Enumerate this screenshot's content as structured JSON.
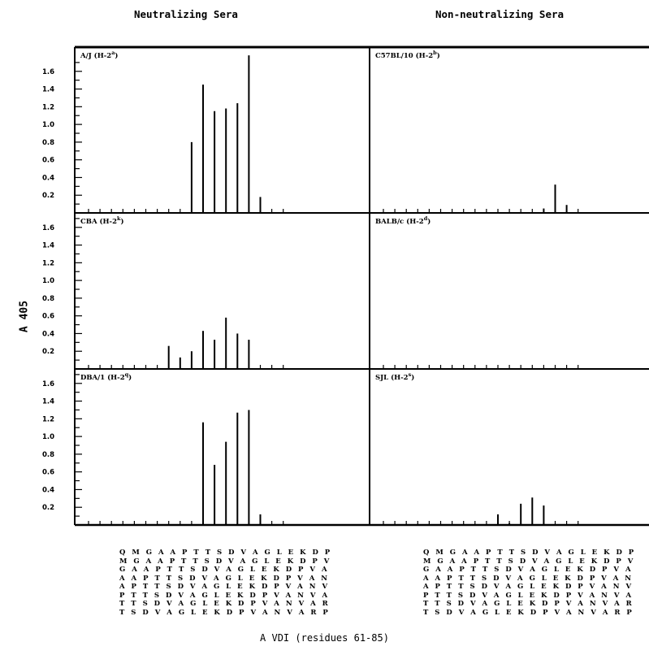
{
  "titles": {
    "left": "Neutralizing Sera",
    "right": "Non-neutralizing Sera"
  },
  "ylabel": "A 405",
  "xlabel": "A VDI (residues 61-85)",
  "sequences": [
    "Q M G A A P T T S D V A G L E K D P",
    "M G A A P T T S D V A G L E K D P V",
    "G A A P T T S D V A G L E K D P V A",
    "A A P T T S D V A G L E K D P V A N",
    "A P T T S D V A G L E K D P V A N V",
    "P T T S D V A G L E K D P V A N V A",
    "T T S D V A G L E K D P V A N V A R",
    "T S D V A G L E K D P V A N V A R P"
  ],
  "chart_data": {
    "type": "bar",
    "ylim": [
      0,
      1.8
    ],
    "yticks": [
      "0.2",
      "0.4",
      "0.6",
      "0.8",
      "1.0",
      "1.2",
      "1.4",
      "1.6"
    ],
    "num_peptides": 18,
    "panels": [
      {
        "label": "A/J (H-2a)",
        "label_main": "A/J (H-2",
        "label_sup": "a",
        "label_end": ")",
        "values": [
          0,
          0,
          0,
          0,
          0,
          0,
          0,
          0,
          0,
          0.8,
          1.45,
          1.15,
          1.18,
          1.24,
          1.78,
          0.18,
          0,
          0
        ]
      },
      {
        "label": "C57BL/10 (H-2b)",
        "label_main": "C57BL/10 (H-2",
        "label_sup": "b",
        "label_end": ")",
        "values": [
          0,
          0,
          0,
          0,
          0,
          0,
          0,
          0,
          0,
          0,
          0,
          0,
          0,
          0,
          0.05,
          0.32,
          0.09,
          0
        ]
      },
      {
        "label": "CBA (H-2k)",
        "label_main": "CBA (H-2",
        "label_sup": "k",
        "label_end": ")",
        "values": [
          0,
          0,
          0,
          0,
          0,
          0,
          0,
          0.26,
          0.13,
          0.2,
          0.43,
          0.33,
          0.58,
          0.4,
          0.33,
          0,
          0,
          0
        ]
      },
      {
        "label": "BALB/c (H-2d)",
        "label_main": "BALB/c (H-2",
        "label_sup": "d",
        "label_end": ")",
        "values": [
          0,
          0,
          0,
          0,
          0,
          0,
          0,
          0,
          0,
          0,
          0,
          0,
          0,
          0,
          0,
          0,
          0,
          0
        ]
      },
      {
        "label": "DBA/1 (H-2q)",
        "label_main": "DBA/1 (H-2",
        "label_sup": "q",
        "label_end": ")",
        "values": [
          0,
          0,
          0,
          0,
          0,
          0,
          0,
          0,
          0,
          0,
          1.16,
          0.68,
          0.94,
          1.27,
          1.3,
          0.12,
          0,
          0
        ]
      },
      {
        "label": "SJL (H-2s)",
        "label_main": "SJL (H-2",
        "label_sup": "s",
        "label_end": ")",
        "values": [
          0,
          0,
          0,
          0,
          0,
          0,
          0,
          0,
          0,
          0,
          0.12,
          0.02,
          0.24,
          0.31,
          0.22,
          0,
          0,
          0
        ]
      }
    ]
  }
}
